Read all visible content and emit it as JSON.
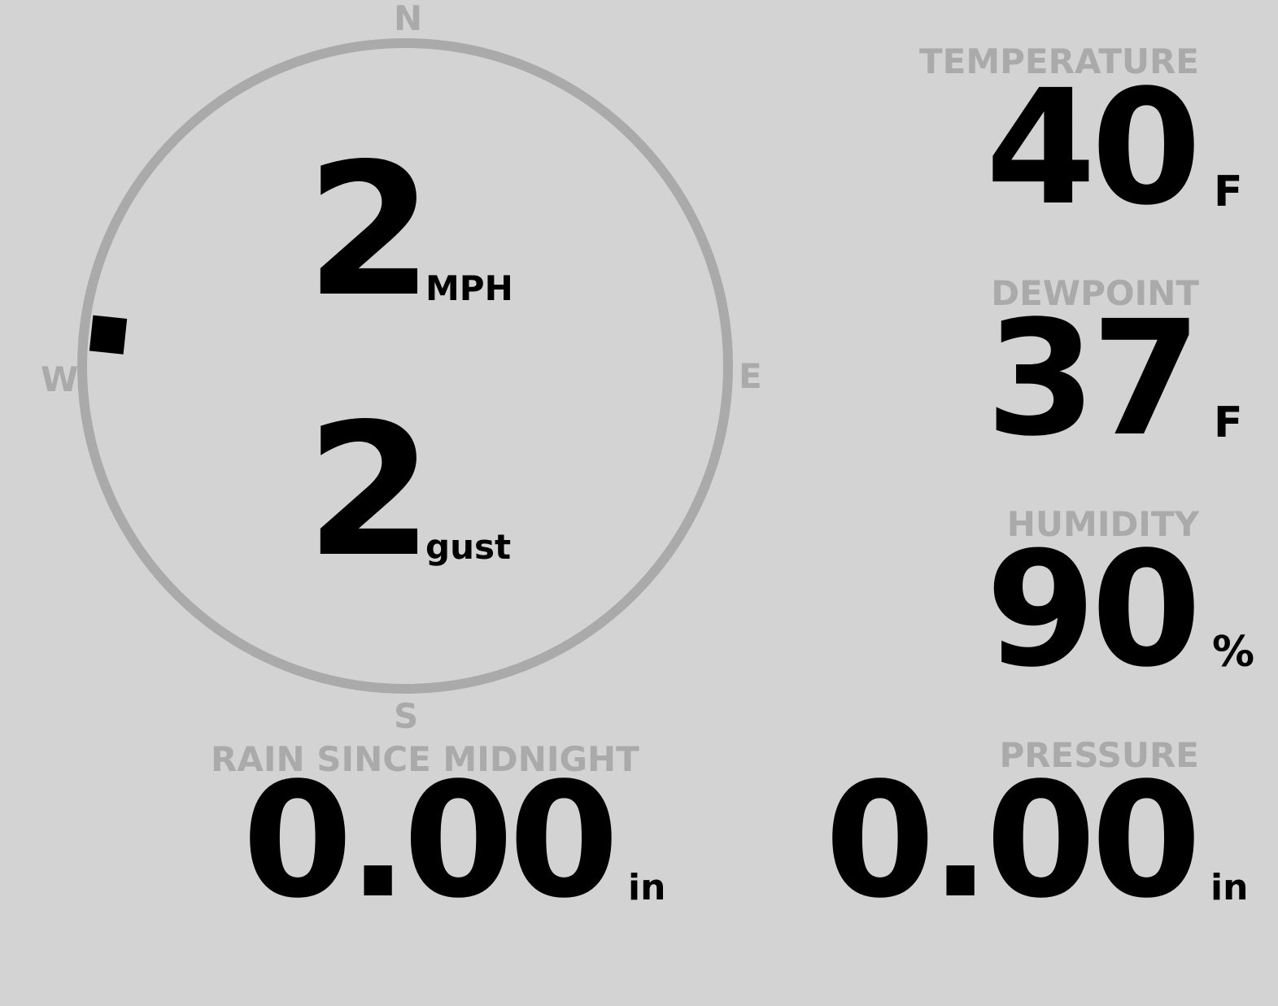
{
  "colors": {
    "background": "#d3d3d3",
    "label": "#aaaaaa",
    "value": "#000000"
  },
  "wind": {
    "compass": {
      "n": "N",
      "e": "E",
      "s": "S",
      "w": "W"
    },
    "direction_deg": 276,
    "speed": "2",
    "speed_unit": "MPH",
    "gust": "2",
    "gust_unit": "gust"
  },
  "temperature": {
    "label": "TEMPERATURE",
    "value": "40",
    "unit": "F"
  },
  "dewpoint": {
    "label": "DEWPOINT",
    "value": "37",
    "unit": "F"
  },
  "humidity": {
    "label": "HUMIDITY",
    "value": "90",
    "unit": "%"
  },
  "rain": {
    "label": "RAIN SINCE MIDNIGHT",
    "value": "0.00",
    "unit": "in"
  },
  "pressure": {
    "label": "PRESSURE",
    "value": "0.00",
    "unit": "in"
  }
}
